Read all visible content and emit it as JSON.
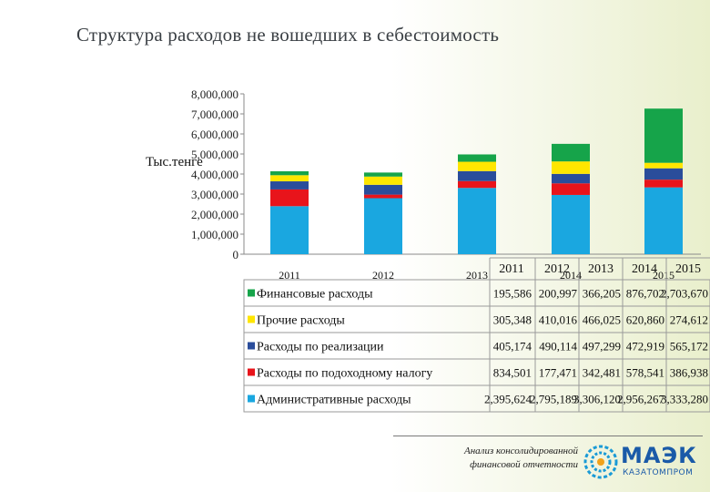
{
  "title": "Структура расходов не вошедших в себестоимость",
  "chart_data": {
    "type": "bar",
    "stacked": true,
    "ylabel": "Тыс.тенге",
    "ylim": [
      0,
      8000000
    ],
    "yticks": [
      "8,000,000",
      "7,000,000",
      "6,000,000",
      "5,000,000",
      "4,000,000",
      "3,000,000",
      "2,000,000",
      "1,000,000",
      "0"
    ],
    "categories": [
      "2011",
      "2012",
      "2013",
      "2014",
      "2015"
    ],
    "series": [
      {
        "name": "Административные расходы",
        "color": "#1aa7e0",
        "values": [
          2395624,
          2795189,
          3306120,
          2956267,
          3333280
        ],
        "labels": [
          "2,395,624",
          "2,795,189",
          "3,306,120",
          "2,956,267",
          "3,333,280"
        ]
      },
      {
        "name": "Расходы по подоходному налогу",
        "color": "#e8141b",
        "values": [
          834501,
          177471,
          342481,
          578541,
          386938
        ],
        "labels": [
          "834,501",
          "177,471",
          "342,481",
          "578,541",
          "386,938"
        ]
      },
      {
        "name": "Расходы по реализации",
        "color": "#2a4d9b",
        "values": [
          405174,
          490114,
          497299,
          472919,
          565172
        ],
        "labels": [
          "405,174",
          "490,114",
          "497,299",
          "472,919",
          "565,172"
        ]
      },
      {
        "name": "Прочие расходы",
        "color": "#ffe600",
        "values": [
          305348,
          410016,
          466025,
          620860,
          274612
        ],
        "labels": [
          "305,348",
          "410,016",
          "466,025",
          "620,860",
          "274,612"
        ]
      },
      {
        "name": "Финансовые расходы",
        "color": "#16a44a",
        "values": [
          195586,
          200997,
          366205,
          876702,
          2703670
        ],
        "labels": [
          "195,586",
          "200,997",
          "366,205",
          "876,702",
          "2,703,670"
        ]
      }
    ],
    "table_header": [
      "2011",
      "2012",
      "2013",
      "2014",
      "2015"
    ]
  },
  "footer": {
    "caption_line1": "Анализ консолидированной",
    "caption_line2": "финансовой отчетности",
    "logo_text": "МАЭК",
    "logo_sub": "КАЗАТОМПРОМ"
  }
}
